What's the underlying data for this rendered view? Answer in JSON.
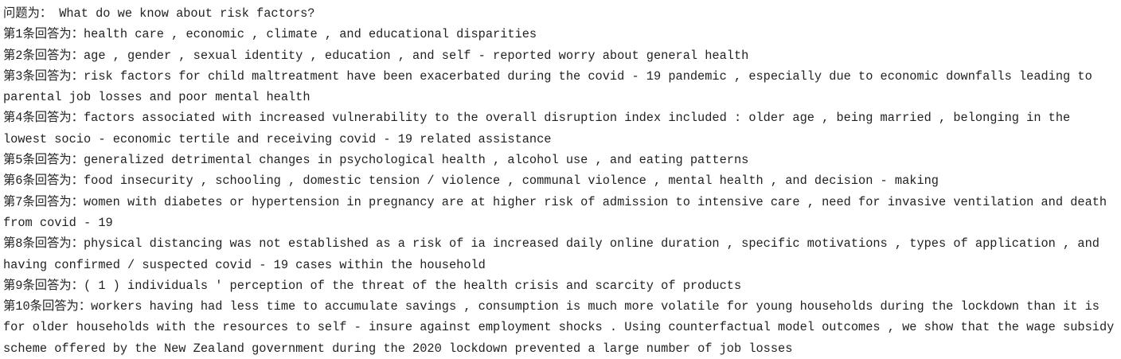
{
  "question": {
    "label": "问题为：",
    "text": "What do we know about risk factors?"
  },
  "answers": [
    {
      "label": "第1条回答为：",
      "text": "health care , economic , climate , and educational disparities"
    },
    {
      "label": "第2条回答为：",
      "text": "age , gender , sexual identity , education , and self - reported worry about general health"
    },
    {
      "label": "第3条回答为：",
      "text": "risk factors for child maltreatment have been exacerbated during the covid - 19 pandemic , especially due to economic downfalls leading to parental job losses and poor mental health"
    },
    {
      "label": "第4条回答为：",
      "text": "factors associated with increased vulnerability to the overall disruption index included : older age , being married , belonging in the lowest socio - economic tertile and receiving covid - 19 related assistance"
    },
    {
      "label": "第5条回答为：",
      "text": "generalized detrimental changes in psychological health , alcohol use , and eating patterns"
    },
    {
      "label": "第6条回答为：",
      "text": "food insecurity , schooling , domestic tension / violence , communal violence , mental health , and decision - making"
    },
    {
      "label": "第7条回答为：",
      "text": "women with diabetes or hypertension in pregnancy are at higher risk of admission to intensive care , need for invasive ventilation and death from covid - 19"
    },
    {
      "label": "第8条回答为：",
      "text": "physical distancing was not established as a risk of ia increased daily online duration , specific motivations , types of application , and having confirmed / suspected covid - 19 cases within the household"
    },
    {
      "label": "第9条回答为：",
      "text": "( 1 ) individuals ' perception of the threat of the health crisis and scarcity of products"
    },
    {
      "label": "第10条回答为：",
      "text": "workers having had less time to accumulate savings , consumption is much more volatile for young households during the lockdown than it is for older households with the resources to self - insure against employment shocks . Using counterfactual model outcomes , we show that the wage subsidy scheme offered by the New Zealand government during the 2020 lockdown prevented a large number of job losses"
    }
  ]
}
